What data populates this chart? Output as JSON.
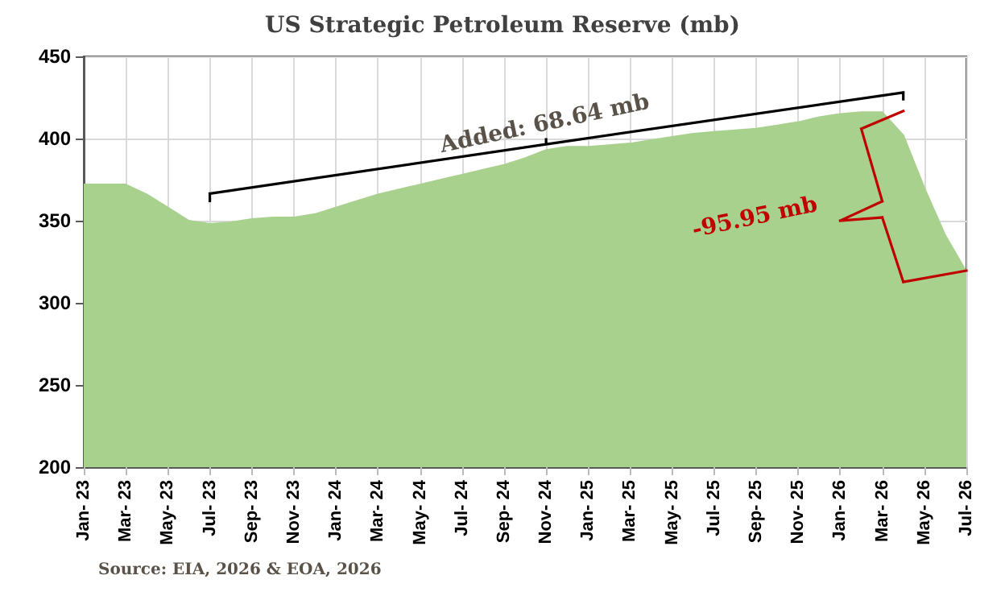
{
  "chart_data": {
    "type": "area",
    "title": "US Strategic Petroleum Reserve (mb)",
    "categories": [
      "Jan- 23",
      null,
      "Mar- 23",
      null,
      "May- 23",
      null,
      "Jul- 23",
      null,
      "Sep- 23",
      null,
      "Nov- 23",
      null,
      "Jan- 24",
      null,
      "Mar- 24",
      null,
      "May- 24",
      null,
      "Jul- 24",
      null,
      "Sep- 24",
      null,
      "Nov- 24",
      null,
      "Jan- 25",
      null,
      "Mar- 25",
      null,
      "May- 25",
      null,
      "Jul- 25",
      null,
      "Sep- 25",
      null,
      "Nov- 25",
      null,
      "Jan- 26",
      null,
      "Mar- 26",
      null,
      "May- 26",
      null,
      "Jul- 26"
    ],
    "values": [
      372,
      372,
      372,
      366,
      358,
      350,
      348,
      349,
      351,
      352,
      352,
      354,
      358,
      362,
      366,
      369,
      372,
      375,
      378,
      381,
      384,
      388,
      393,
      395,
      395,
      396,
      397,
      399,
      401,
      403,
      404,
      405,
      406,
      408,
      410,
      413,
      415,
      416,
      416,
      402,
      370,
      341,
      319
    ],
    "color": "#a9d18e",
    "ylim": [
      200,
      450
    ],
    "yticks": [
      200,
      250,
      300,
      350,
      400,
      450
    ],
    "grid": true,
    "annotations": [
      "Added: 68.64 mb",
      "-95.95 mb",
      "Source: EIA, 2026 & EOA, 2026"
    ]
  }
}
